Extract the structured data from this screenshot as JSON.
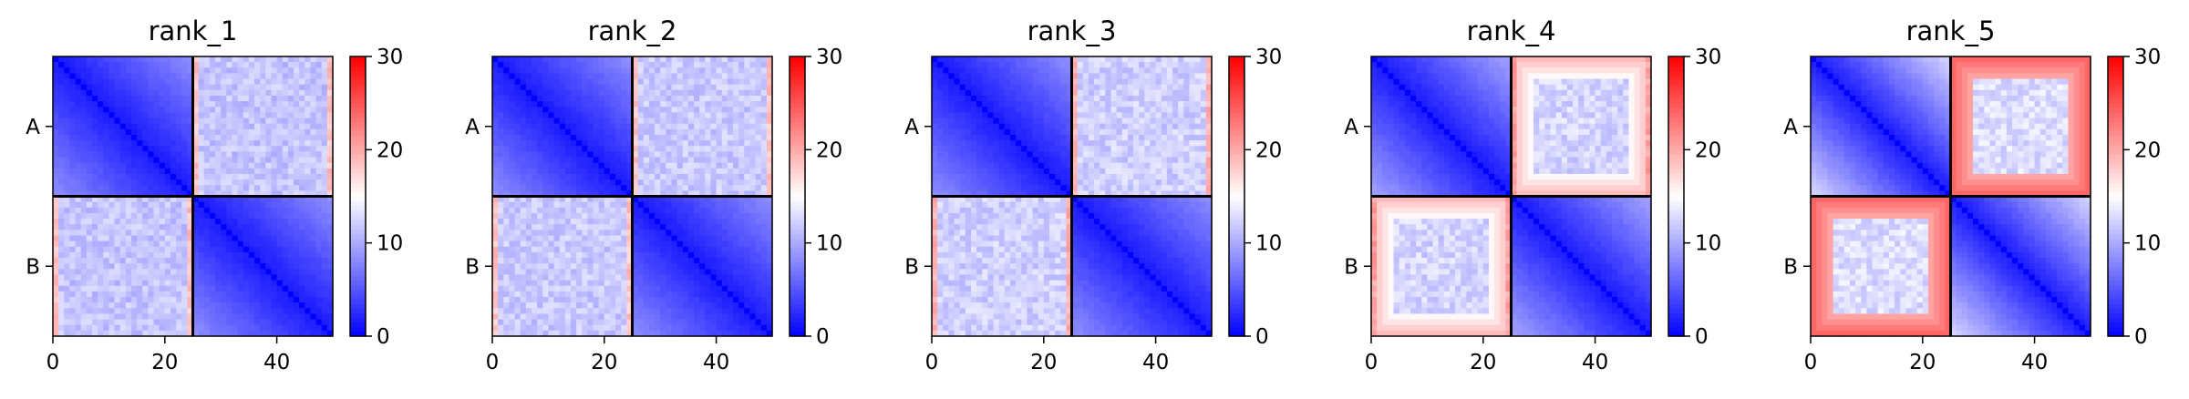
{
  "figure": {
    "type": "heatmap",
    "colormap": "bwr",
    "colors": {
      "low": "#0000ff",
      "mid": "#ffffff",
      "high": "#ff0000"
    }
  },
  "chart_data": [
    {
      "type": "heatmap",
      "title": "rank_1",
      "size": 50,
      "split": 25,
      "chains": [
        "A",
        "B"
      ],
      "xticks": [
        0,
        20,
        40
      ],
      "xlim": [
        0,
        50
      ],
      "colorbar": {
        "ticks": [
          0,
          10,
          20,
          30
        ],
        "range": [
          0,
          30
        ]
      },
      "intra": {
        "base": 1.5,
        "slope": 0.28,
        "max": 14
      },
      "inter": {
        "mean": 11.5,
        "noise": 1.5
      },
      "edge_high": 20
    },
    {
      "type": "heatmap",
      "title": "rank_2",
      "size": 50,
      "split": 25,
      "chains": [
        "A",
        "B"
      ],
      "xticks": [
        0,
        20,
        40
      ],
      "xlim": [
        0,
        50
      ],
      "colorbar": {
        "ticks": [
          0,
          10,
          20,
          30
        ],
        "range": [
          0,
          30
        ]
      },
      "intra": {
        "base": 1.5,
        "slope": 0.28,
        "max": 14
      },
      "inter": {
        "mean": 11.8,
        "noise": 1.5
      },
      "edge_high": 20
    },
    {
      "type": "heatmap",
      "title": "rank_3",
      "size": 50,
      "split": 25,
      "chains": [
        "A",
        "B"
      ],
      "xticks": [
        0,
        20,
        40
      ],
      "xlim": [
        0,
        50
      ],
      "colorbar": {
        "ticks": [
          0,
          10,
          20,
          30
        ],
        "range": [
          0,
          30
        ]
      },
      "intra": {
        "base": 1.5,
        "slope": 0.28,
        "max": 14
      },
      "inter": {
        "mean": 12.2,
        "noise": 1.5
      },
      "edge_high": 21
    },
    {
      "type": "heatmap",
      "title": "rank_4",
      "size": 50,
      "split": 25,
      "chains": [
        "A",
        "B"
      ],
      "xticks": [
        0,
        20,
        40
      ],
      "xlim": [
        0,
        50
      ],
      "colorbar": {
        "ticks": [
          0,
          10,
          20,
          30
        ],
        "range": [
          0,
          30
        ]
      },
      "intra": {
        "base": 1.5,
        "slope": 0.33,
        "max": 18
      },
      "inter": {
        "mean": 12.5,
        "noise": 1.6,
        "rim": 19
      },
      "edge_high": 22
    },
    {
      "type": "heatmap",
      "title": "rank_5",
      "size": 50,
      "split": 25,
      "chains": [
        "A",
        "B"
      ],
      "xticks": [
        0,
        20,
        40
      ],
      "xlim": [
        0,
        50
      ],
      "colorbar": {
        "ticks": [
          0,
          10,
          20,
          30
        ],
        "range": [
          0,
          30
        ]
      },
      "intra": {
        "base": 1.5,
        "slope": 0.45,
        "max": 22
      },
      "inter": {
        "mean": 13,
        "noise": 1.6,
        "rim": 24
      },
      "edge_high": 24
    }
  ]
}
